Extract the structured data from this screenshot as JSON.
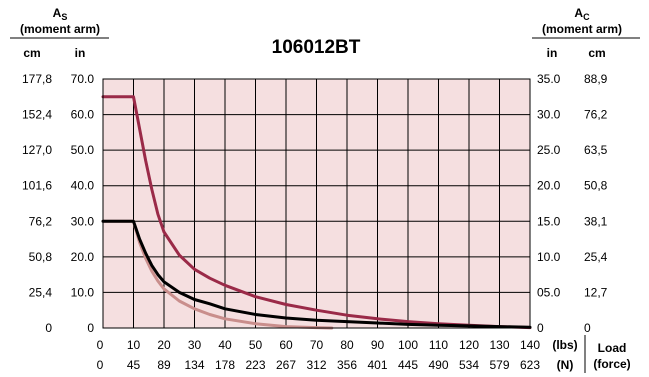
{
  "chart_data": {
    "type": "line",
    "title": "106012BT",
    "left_axis": {
      "label_main": "A",
      "label_sub": "S",
      "label_note": "(moment arm)",
      "unit_outer": "cm",
      "unit_inner": "in",
      "ticks_in": [
        "0",
        "10.0",
        "20.0",
        "30.0",
        "40.0",
        "50.0",
        "60.0",
        "70.0"
      ],
      "ticks_cm": [
        "0",
        "25,4",
        "50,8",
        "76,2",
        "101,6",
        "127,0",
        "152,4",
        "177,8"
      ],
      "ylim_in": [
        0,
        70
      ]
    },
    "right_axis": {
      "label_main": "A",
      "label_sub": "C",
      "label_note": "(moment arm)",
      "unit_inner": "in",
      "unit_outer": "cm",
      "ticks_in": [
        "0",
        "05.0",
        "10.0",
        "15.0",
        "20.0",
        "25.0",
        "30.0",
        "35.0"
      ],
      "ticks_cm": [
        "0",
        "12,7",
        "25,4",
        "38,1",
        "50,8",
        "63,5",
        "76,2",
        "88,9"
      ],
      "ylim_in": [
        0,
        35
      ]
    },
    "x_axis": {
      "ticks_lbs": [
        "0",
        "10",
        "20",
        "30",
        "40",
        "50",
        "60",
        "70",
        "80",
        "90",
        "100",
        "110",
        "120",
        "130",
        "140"
      ],
      "ticks_n": [
        "0",
        "45",
        "89",
        "134",
        "178",
        "223",
        "267",
        "312",
        "356",
        "401",
        "445",
        "490",
        "534",
        "579",
        "623"
      ],
      "unit_lbs": "(lbs)",
      "unit_n": "(N)",
      "label_1": "Load",
      "label_2": "(force)",
      "xlim": [
        0,
        140
      ]
    },
    "grid": true,
    "background": "#f5dfe0",
    "series": [
      {
        "axis": "left",
        "color": "#9a2a48",
        "x": [
          0,
          10,
          12,
          14,
          16,
          18,
          20,
          25,
          30,
          35,
          40,
          50,
          60,
          70,
          80,
          90,
          100,
          110,
          120,
          130,
          140
        ],
        "y": [
          65,
          65,
          56,
          47,
          39,
          32,
          27,
          20.5,
          16.5,
          14,
          12,
          8.8,
          6.6,
          5,
          3.6,
          2.6,
          1.8,
          1.2,
          0.8,
          0.4,
          0.1
        ]
      },
      {
        "axis": "right",
        "color": "#000000",
        "x": [
          0,
          10,
          12,
          14,
          16,
          18,
          20,
          25,
          30,
          35,
          40,
          50,
          60,
          70,
          80,
          90,
          100,
          110,
          120,
          130,
          140
        ],
        "y": [
          15,
          15,
          12.5,
          10.5,
          8.8,
          7.5,
          6.5,
          5,
          4,
          3.4,
          2.7,
          1.9,
          1.4,
          1.1,
          0.9,
          0.7,
          0.5,
          0.4,
          0.3,
          0.2,
          0.1
        ]
      },
      {
        "axis": "right",
        "color": "#c98e8c",
        "x": [
          0,
          10,
          12,
          14,
          16,
          18,
          20,
          25,
          30,
          35,
          40,
          50,
          60,
          70,
          75
        ],
        "y": [
          15,
          15,
          12,
          9.8,
          8,
          6.6,
          5.5,
          3.8,
          2.7,
          1.9,
          1.3,
          0.6,
          0.2,
          0.05,
          0
        ]
      }
    ]
  }
}
